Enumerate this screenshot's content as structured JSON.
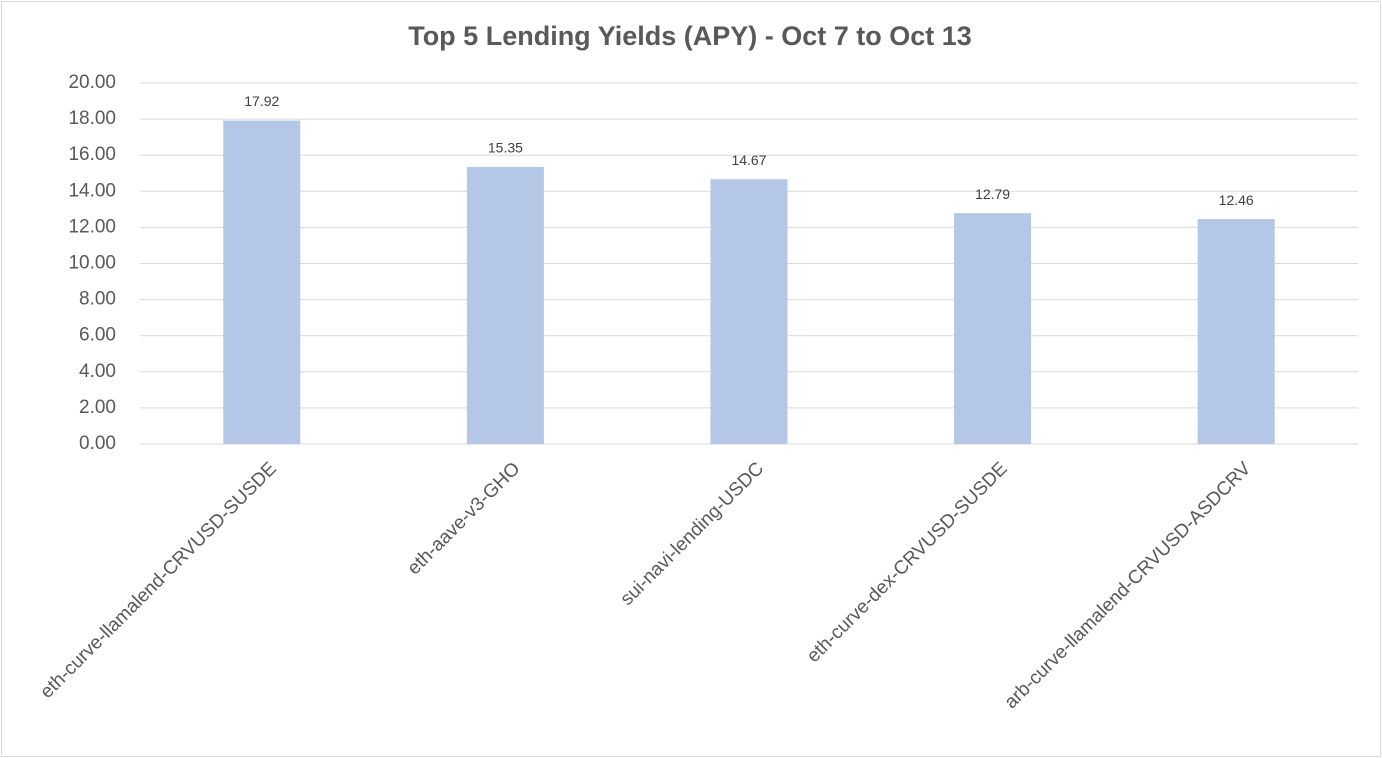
{
  "chart_data": {
    "type": "bar",
    "title": "Top 5 Lending Yields (APY) - Oct 7 to Oct 13",
    "categories": [
      "eth-curve-llamalend-CRVUSD-SUSDE",
      "eth-aave-v3-GHO",
      "sui-navi-lending-USDC",
      "eth-curve-dex-CRVUSD-SUSDE",
      "arb-curve-llamalend-CRVUSD-ASDCRV"
    ],
    "values": [
      17.92,
      15.35,
      14.67,
      12.79,
      12.46
    ],
    "color": "#b4c7e7",
    "ylim": [
      0,
      20
    ],
    "yticks": [
      {
        "value": 0,
        "label": "0.00"
      },
      {
        "value": 2,
        "label": "2.00"
      },
      {
        "value": 4,
        "label": "4.00"
      },
      {
        "value": 6,
        "label": "6.00"
      },
      {
        "value": 8,
        "label": "8.00"
      },
      {
        "value": 10,
        "label": "10.00"
      },
      {
        "value": 12,
        "label": "12.00"
      },
      {
        "value": 14,
        "label": "14.00"
      },
      {
        "value": 16,
        "label": "16.00"
      },
      {
        "value": 18,
        "label": "18.00"
      },
      {
        "value": 20,
        "label": "20.00"
      }
    ],
    "grid": true
  }
}
